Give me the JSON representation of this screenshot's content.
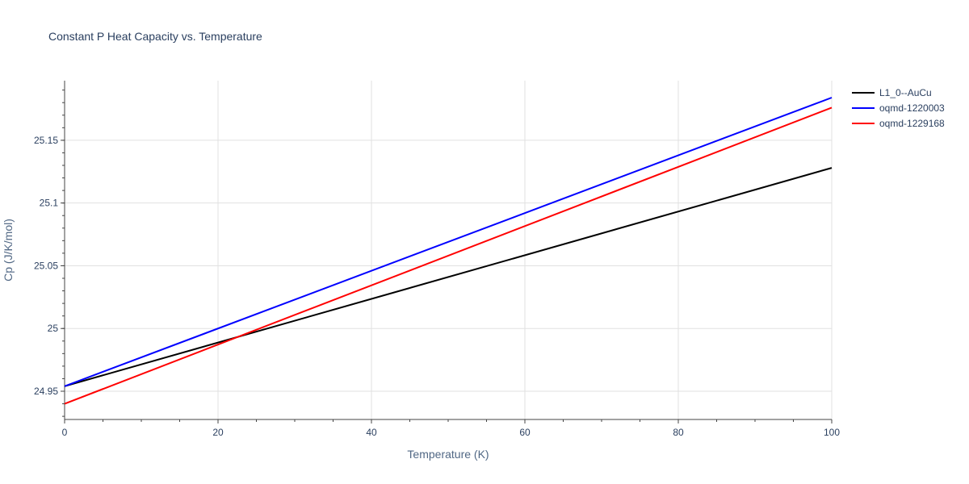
{
  "chart_data": {
    "type": "line",
    "title": "Constant P Heat Capacity vs. Temperature",
    "xlabel": "Temperature (K)",
    "ylabel": "Cp (J/K/mol)",
    "xlim": [
      0,
      100
    ],
    "ylim": [
      24.9275,
      25.1975
    ],
    "x_ticks": [
      0,
      20,
      40,
      60,
      80,
      100
    ],
    "x_tick_labels": [
      "0",
      "20",
      "40",
      "60",
      "80",
      "100"
    ],
    "y_ticks": [
      24.95,
      25,
      25.05,
      25.1,
      25.15
    ],
    "y_tick_labels": [
      "24.95",
      "25",
      "25.05",
      "25.1",
      "25.15"
    ],
    "grid": true,
    "legend_position": "top-right",
    "series": [
      {
        "name": "L1_0--AuCu",
        "color": "#000000",
        "x": [
          0,
          100
        ],
        "values": [
          24.954,
          25.128
        ]
      },
      {
        "name": "oqmd-1220003",
        "color": "#0000ff",
        "x": [
          0,
          100
        ],
        "values": [
          24.954,
          25.184
        ]
      },
      {
        "name": "oqmd-1229168",
        "color": "#ff0000",
        "x": [
          0,
          100
        ],
        "values": [
          24.94,
          25.176
        ]
      }
    ]
  }
}
